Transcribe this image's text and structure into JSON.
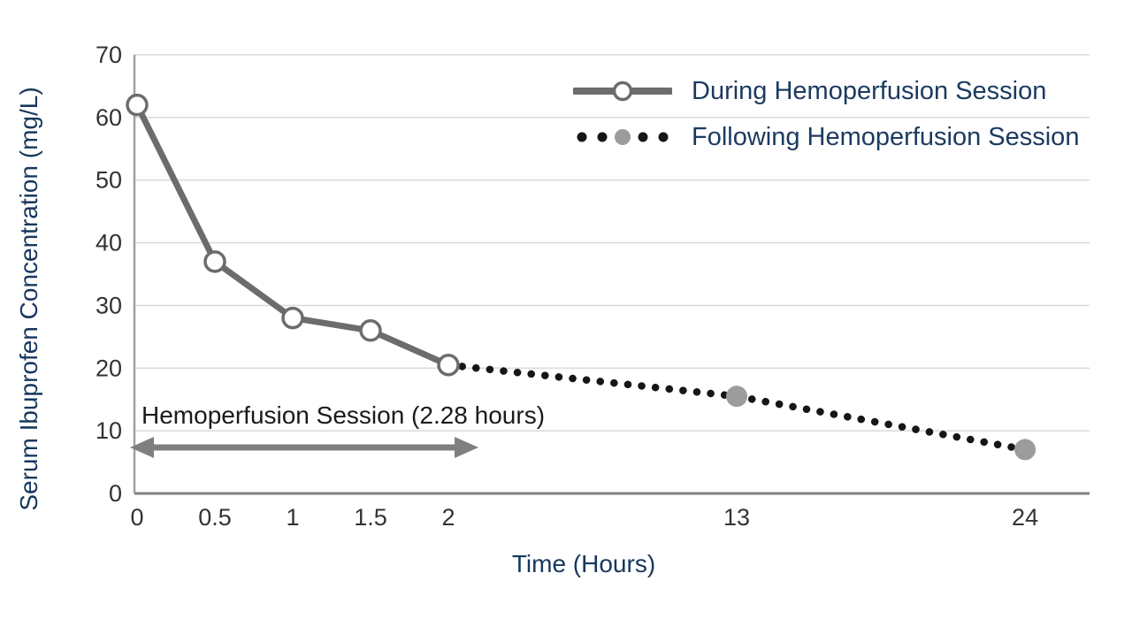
{
  "colors": {
    "background": "#ffffff",
    "gridline": "#dcdcdc",
    "y_axis_line": "#a0a0a0",
    "x_axis_line": "#808080",
    "tick_label": "#333333",
    "axis_title": "#17375e",
    "legend_text": "#1b3a5f",
    "during_line": "#6c6c6e",
    "during_marker_fill": "#ffffff",
    "following_dots": "#161616",
    "following_marker_fill": "#9c9c9c",
    "arrow": "#7f7f7f",
    "annotation_text": "#1a1a1a"
  },
  "chart_data": {
    "type": "line",
    "title": "",
    "xlabel": "Time (Hours)",
    "ylabel": "Serum Ibuprofen Concentration (mg/L)",
    "x_ticks": [
      0,
      0.5,
      1,
      1.5,
      2,
      13,
      24
    ],
    "y_ticks": [
      0,
      10,
      20,
      30,
      40,
      50,
      60,
      70
    ],
    "ylim": [
      0,
      70
    ],
    "xlim": [
      0,
      24
    ],
    "x_axis_note": "broken time axis: 0-2 h expanded, 2-24 h compressed",
    "grid": "horizontal",
    "legend_position": "top-right",
    "series": [
      {
        "name": "During Hemoperfusion Session",
        "style": "solid gray line, open circle markers",
        "x": [
          0,
          0.5,
          1,
          1.5,
          2
        ],
        "y": [
          62,
          37,
          28,
          26,
          20.5
        ]
      },
      {
        "name": "Following Hemoperfusion Session",
        "style": "black dotted line, gray filled circle markers",
        "x": [
          2,
          13,
          24
        ],
        "y": [
          20.5,
          15.5,
          7
        ],
        "marker_x": [
          13,
          24
        ],
        "marker_y": [
          15.5,
          7
        ]
      }
    ],
    "annotation": {
      "text": "Hemoperfusion Session (2.28 hours)",
      "arrow_span_hours": [
        0,
        2.28
      ]
    }
  }
}
